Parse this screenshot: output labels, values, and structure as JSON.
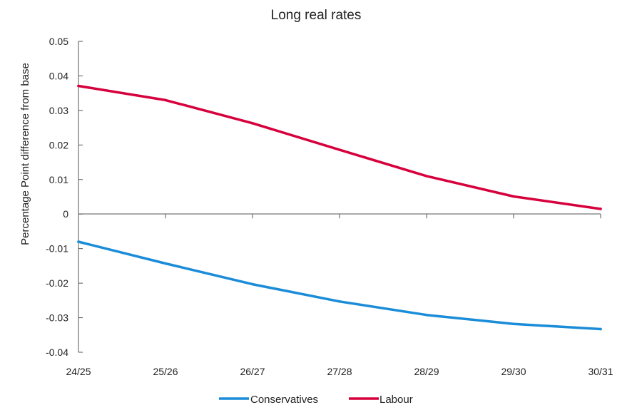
{
  "chart_data": {
    "type": "line",
    "title": "Long real rates",
    "xlabel": "",
    "ylabel": "Percentage Point difference from base",
    "categories": [
      "24/25",
      "25/26",
      "26/27",
      "27/28",
      "28/29",
      "29/30",
      "30/31"
    ],
    "y_ticks": [
      "0.05",
      "0.04",
      "0.03",
      "0.02",
      "0.01",
      "0",
      "-0.01",
      "-0.02",
      "-0.03",
      "-0.04"
    ],
    "ylim": [
      -0.04,
      0.05
    ],
    "grid": false,
    "legend_position": "bottom",
    "series": [
      {
        "name": "Conservatives",
        "color": "#1a8cd8",
        "values": [
          -0.008,
          -0.0143,
          -0.0203,
          -0.0253,
          -0.0292,
          -0.0318,
          -0.0333
        ]
      },
      {
        "name": "Labour",
        "color": "#d6003c",
        "values": [
          0.0371,
          0.033,
          0.0263,
          0.0186,
          0.011,
          0.0051,
          0.0015
        ]
      }
    ]
  }
}
